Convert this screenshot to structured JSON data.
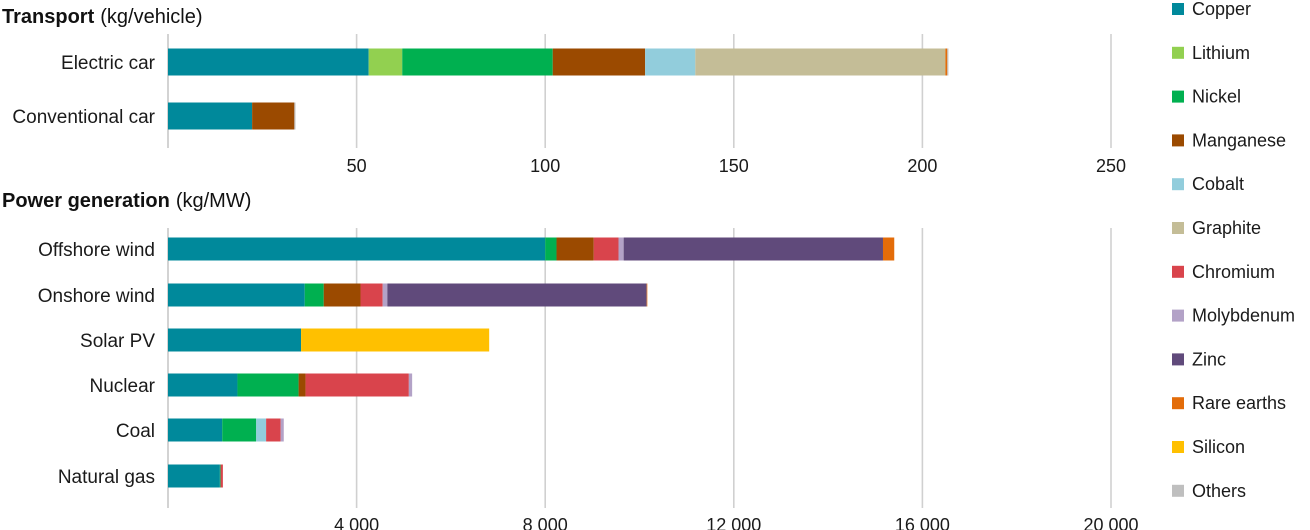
{
  "colors": {
    "Copper": "#00899b",
    "Lithium": "#92d050",
    "Nickel": "#00b050",
    "Manganese": "#9b4a00",
    "Cobalt": "#92cddc",
    "Graphite": "#c4bd97",
    "Chromium": "#d9444c",
    "Molybdenum": "#b3a2c7",
    "Zinc": "#604a7b",
    "Rare earths": "#e36c09",
    "Silicon": "#ffc000",
    "Others": "#bfbfbf"
  },
  "legend": [
    "Copper",
    "Lithium",
    "Nickel",
    "Manganese",
    "Cobalt",
    "Graphite",
    "Chromium",
    "Molybdenum",
    "Zinc",
    "Rare earths",
    "Silicon",
    "Others"
  ],
  "chart_data": [
    {
      "type": "bar",
      "orientation": "horizontal",
      "stacked": true,
      "title": "Transport",
      "title_unit": "(kg/vehicle)",
      "categories": [
        "Electric car",
        "Conventional car"
      ],
      "xlim": [
        0,
        250
      ],
      "ticks": [
        50,
        100,
        150,
        200,
        250
      ],
      "tick_labels": [
        "50",
        "100",
        "150",
        "200",
        "250"
      ],
      "grid": true,
      "series": [
        {
          "name": "Copper",
          "values": [
            53.2,
            22.3
          ]
        },
        {
          "name": "Lithium",
          "values": [
            8.9,
            0
          ]
        },
        {
          "name": "Nickel",
          "values": [
            39.9,
            0
          ]
        },
        {
          "name": "Manganese",
          "values": [
            24.5,
            11.2
          ]
        },
        {
          "name": "Cobalt",
          "values": [
            13.3,
            0
          ]
        },
        {
          "name": "Graphite",
          "values": [
            66.3,
            0
          ]
        },
        {
          "name": "Chromium",
          "values": [
            0,
            0
          ]
        },
        {
          "name": "Molybdenum",
          "values": [
            0,
            0
          ]
        },
        {
          "name": "Zinc",
          "values": [
            0,
            0
          ]
        },
        {
          "name": "Rare earths",
          "values": [
            0.5,
            0
          ]
        },
        {
          "name": "Silicon",
          "values": [
            0,
            0
          ]
        },
        {
          "name": "Others",
          "values": [
            0.3,
            0.3
          ]
        }
      ]
    },
    {
      "type": "bar",
      "orientation": "horizontal",
      "stacked": true,
      "title": "Power generation",
      "title_unit": "(kg/MW)",
      "categories": [
        "Offshore wind",
        "Onshore wind",
        "Solar PV",
        "Nuclear",
        "Coal",
        "Natural gas"
      ],
      "xlim": [
        0,
        20000
      ],
      "ticks": [
        4000,
        8000,
        12000,
        16000,
        20000
      ],
      "tick_labels": [
        "4 000",
        "8 000",
        "12 000",
        "16 000",
        "20 000"
      ],
      "grid": true,
      "series": [
        {
          "name": "Copper",
          "values": [
            8000,
            2900,
            2822,
            1473,
            1150,
            1100
          ]
        },
        {
          "name": "Lithium",
          "values": [
            0,
            0,
            0,
            0,
            0,
            0
          ]
        },
        {
          "name": "Nickel",
          "values": [
            240,
            403,
            0,
            1297,
            721,
            16
          ]
        },
        {
          "name": "Manganese",
          "values": [
            790,
            780,
            0,
            148,
            0,
            0
          ]
        },
        {
          "name": "Cobalt",
          "values": [
            0,
            0,
            0,
            0,
            210,
            0
          ]
        },
        {
          "name": "Graphite",
          "values": [
            0,
            0,
            0,
            0,
            0,
            0
          ]
        },
        {
          "name": "Chromium",
          "values": [
            525,
            470,
            0,
            2190,
            308,
            48
          ]
        },
        {
          "name": "Molybdenum",
          "values": [
            109,
            99,
            0,
            70,
            66,
            0
          ]
        },
        {
          "name": "Zinc",
          "values": [
            5500,
            5500,
            0,
            0,
            0,
            0
          ]
        },
        {
          "name": "Rare earths",
          "values": [
            239,
            14,
            0,
            0,
            0,
            0
          ]
        },
        {
          "name": "Silicon",
          "values": [
            0,
            0,
            3990,
            0,
            0,
            0
          ]
        },
        {
          "name": "Others",
          "values": [
            0,
            0,
            0,
            0,
            0,
            0
          ]
        }
      ]
    }
  ]
}
